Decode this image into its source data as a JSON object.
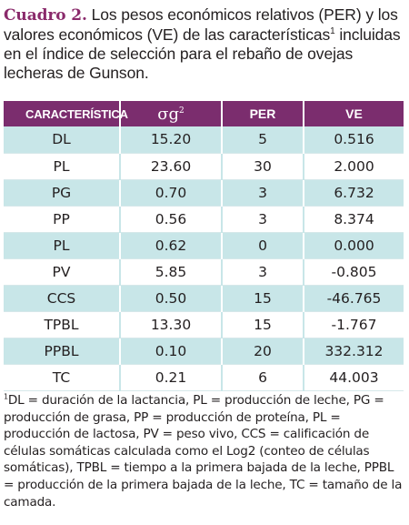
{
  "caption": {
    "lead": "Cuadro 2.",
    "text_before_sup": "Los pesos económicos relativos (PER) y los valores económicos (VE) de las características",
    "sup": "1",
    "text_after_sup": "incluidas en el índice de selección para el rebaño de ovejas lecheras de Gunson."
  },
  "table": {
    "headers": [
      "CARACTERÍSTICA",
      "σg",
      "PER",
      "VE"
    ],
    "header_sup": "2",
    "rows": [
      [
        "DL",
        "15.20",
        "5",
        "0.516"
      ],
      [
        "PL",
        "23.60",
        "30",
        "2.000"
      ],
      [
        "PG",
        "0.70",
        "3",
        "6.732"
      ],
      [
        "PP",
        "0.56",
        "3",
        "8.374"
      ],
      [
        "PL",
        "0.62",
        "0",
        "0.000"
      ],
      [
        "PV",
        "5.85",
        "3",
        "-0.805"
      ],
      [
        "CCS",
        "0.50",
        "15",
        "-46.765"
      ],
      [
        "TPBL",
        "13.30",
        "15",
        "-1.767"
      ],
      [
        "PPBL",
        "0.10",
        "20",
        "332.312"
      ],
      [
        "TC",
        "0.21",
        "6",
        "44.003"
      ]
    ]
  },
  "footnote": {
    "sup": "1",
    "text": "DL = duración de la lactancia, PL = producción de leche, PG = producción de grasa, PP = producción de proteína, PL = producción de lactosa, PV = peso vivo, CCS = calificación de células somáticas calculada como el Log2 (conteo de células somáticas), TPBL = tiempo a la primera bajada de la leche, PPBL = producción de la primera bajada de la leche, TC = tamaño de la camada."
  },
  "colors": {
    "accent": "#7b2d6e",
    "title": "#8a2a6b",
    "row_band": "#c8e6e8"
  }
}
